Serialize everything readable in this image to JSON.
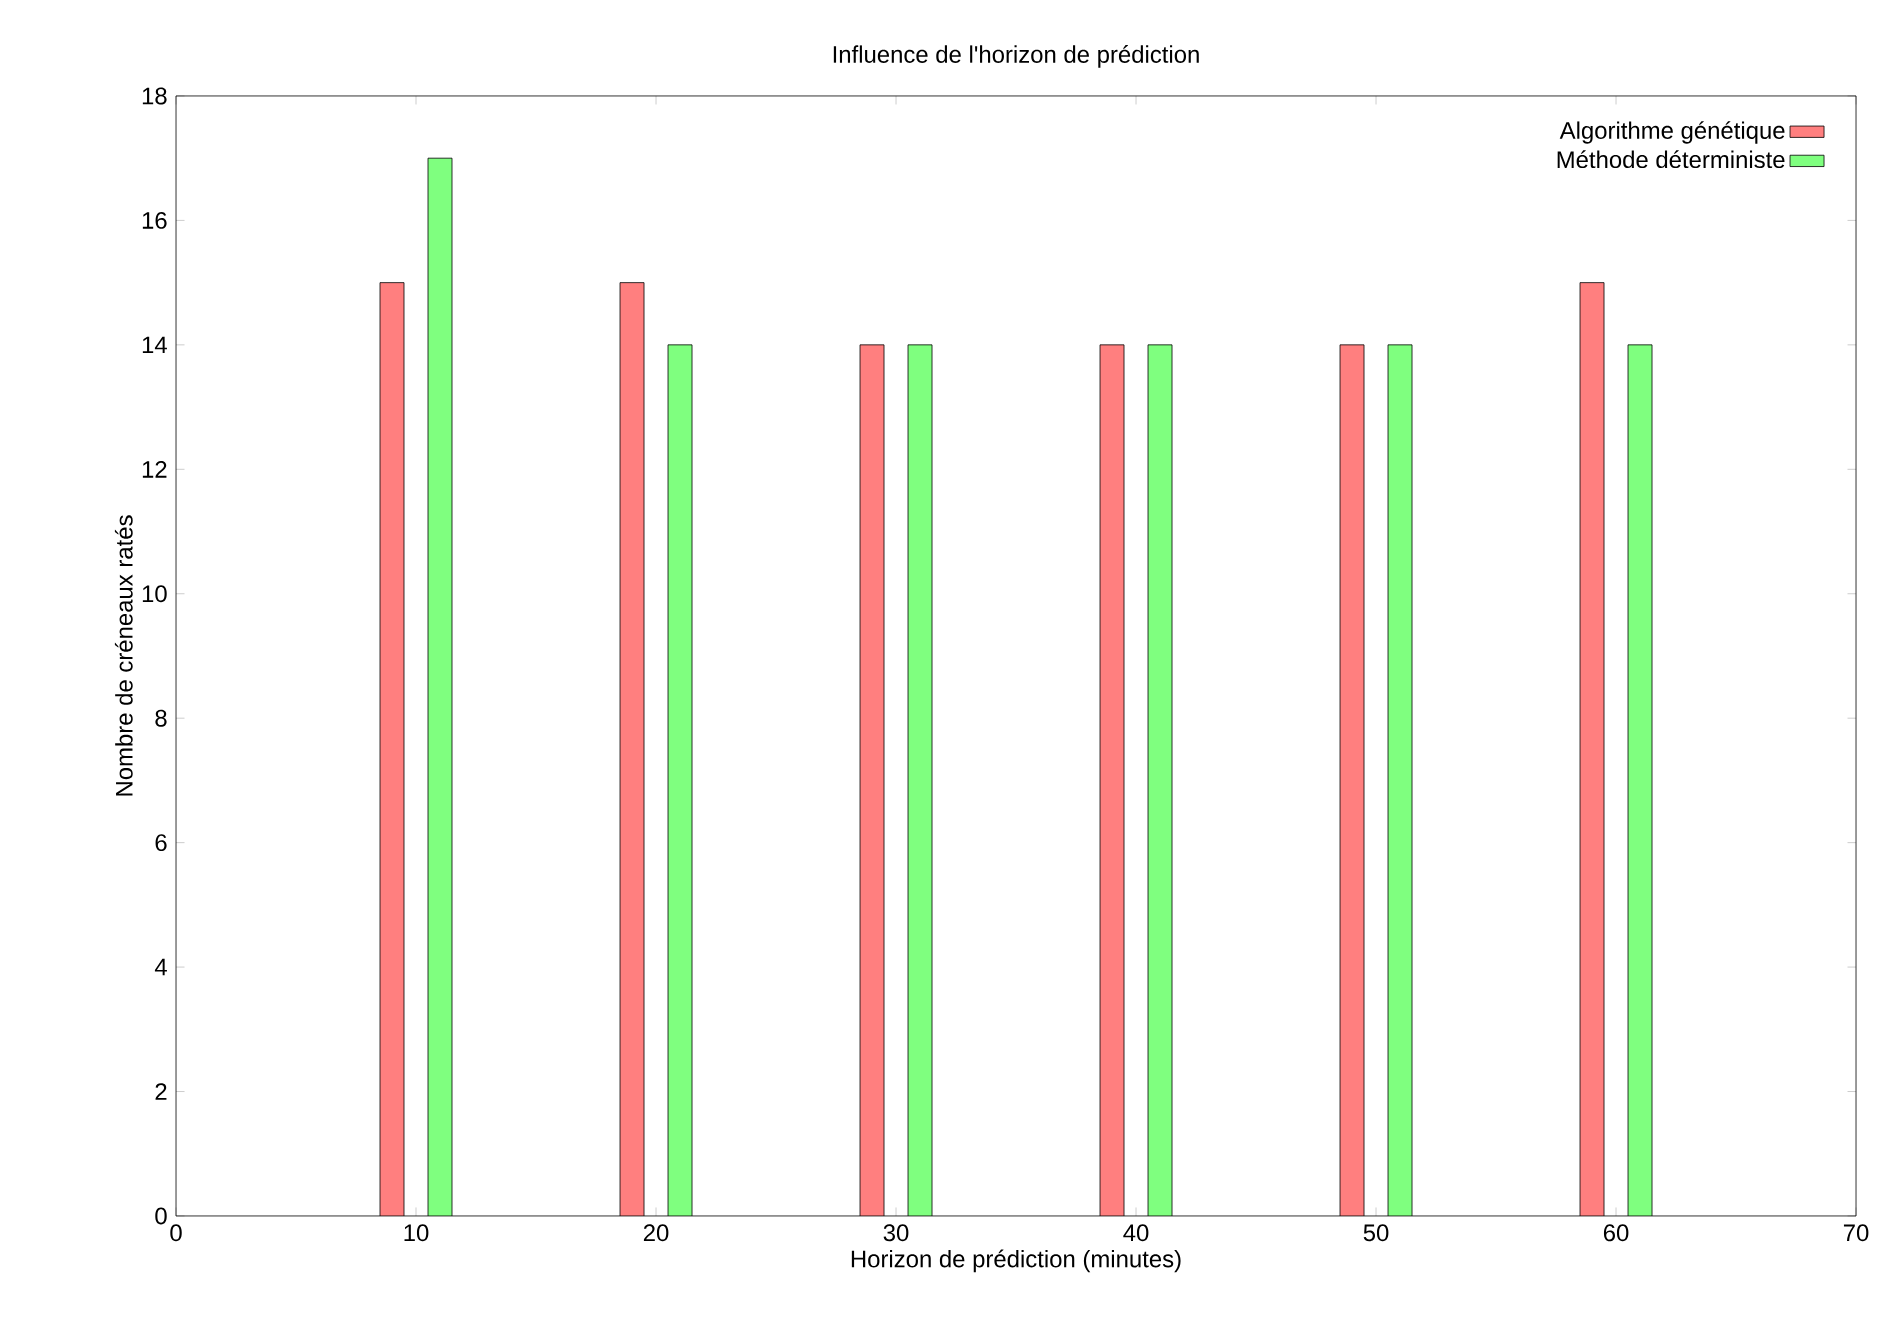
{
  "chart_data": {
    "type": "bar",
    "title": "Influence de l'horizon de prédiction",
    "xlabel": "Horizon de prédiction (minutes)",
    "ylabel": "Nombre de créneaux ratés",
    "x": [
      10,
      20,
      30,
      40,
      50,
      60
    ],
    "series": [
      {
        "name": "Algorithme génétique",
        "color": "#ff7f7f",
        "values": [
          15,
          15,
          14,
          14,
          14,
          15
        ]
      },
      {
        "name": "Méthode déterministe",
        "color": "#7fff7f",
        "values": [
          17,
          14,
          14,
          14,
          14,
          14
        ]
      }
    ],
    "xlim": [
      0,
      70
    ],
    "xticks": [
      0,
      10,
      20,
      30,
      40,
      50,
      60,
      70
    ],
    "ylim": [
      0,
      18
    ],
    "yticks": [
      0,
      2,
      4,
      6,
      8,
      10,
      12,
      14,
      16,
      18
    ],
    "grid": false,
    "legend": "top right"
  }
}
